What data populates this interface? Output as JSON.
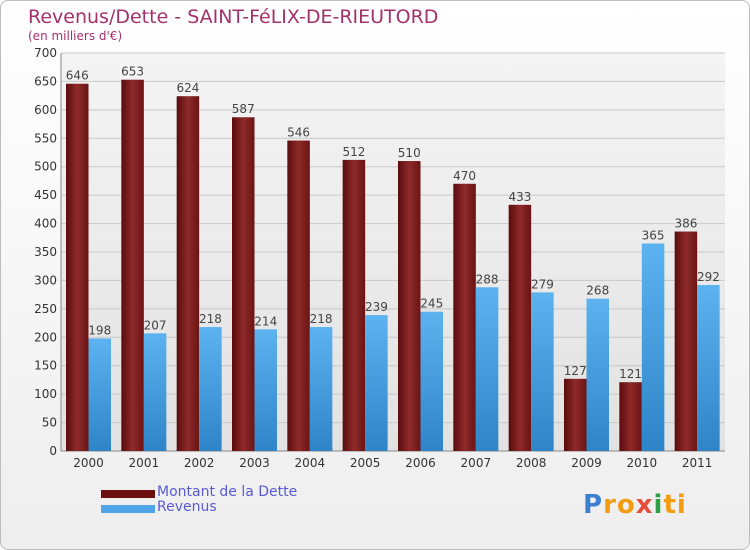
{
  "header": {
    "title": "Revenus/Dette - SAINT-FéLIX-DE-RIEUTORD",
    "subtitle": "(en milliers d'€)"
  },
  "chart_data": {
    "type": "bar",
    "title": "Revenus/Dette - SAINT-FéLIX-DE-RIEUTORD",
    "subtitle": "(en milliers d'€)",
    "categories": [
      "2000",
      "2001",
      "2002",
      "2003",
      "2004",
      "2005",
      "2006",
      "2007",
      "2008",
      "2009",
      "2010",
      "2011"
    ],
    "series": [
      {
        "name": "Montant de la Dette",
        "color": "#7a1a1a",
        "values": [
          646,
          653,
          624,
          587,
          546,
          512,
          510,
          470,
          433,
          127,
          121,
          386
        ]
      },
      {
        "name": "Revenus",
        "color": "#4ea6e6",
        "values": [
          198,
          207,
          218,
          214,
          218,
          239,
          245,
          288,
          279,
          268,
          365,
          292
        ]
      }
    ],
    "ylim": [
      0,
      700
    ],
    "yticks": [
      0,
      50,
      100,
      150,
      200,
      250,
      300,
      350,
      400,
      450,
      500,
      550,
      600,
      650,
      700
    ],
    "grid": true,
    "legend": "bottom-left"
  },
  "legend": {
    "items": [
      {
        "label": "Montant de la Dette",
        "color": "#6b0f0f"
      },
      {
        "label": "Revenus",
        "color": "#4ea6e6"
      }
    ]
  },
  "logo": {
    "letters": [
      "P",
      "r",
      "o",
      "x",
      "i",
      "t",
      "i"
    ],
    "colors": [
      "#3a7fd0",
      "#f39c12",
      "#f39c12",
      "#e74c3c",
      "#2e9e44",
      "#f39c12",
      "#f39c12"
    ]
  }
}
